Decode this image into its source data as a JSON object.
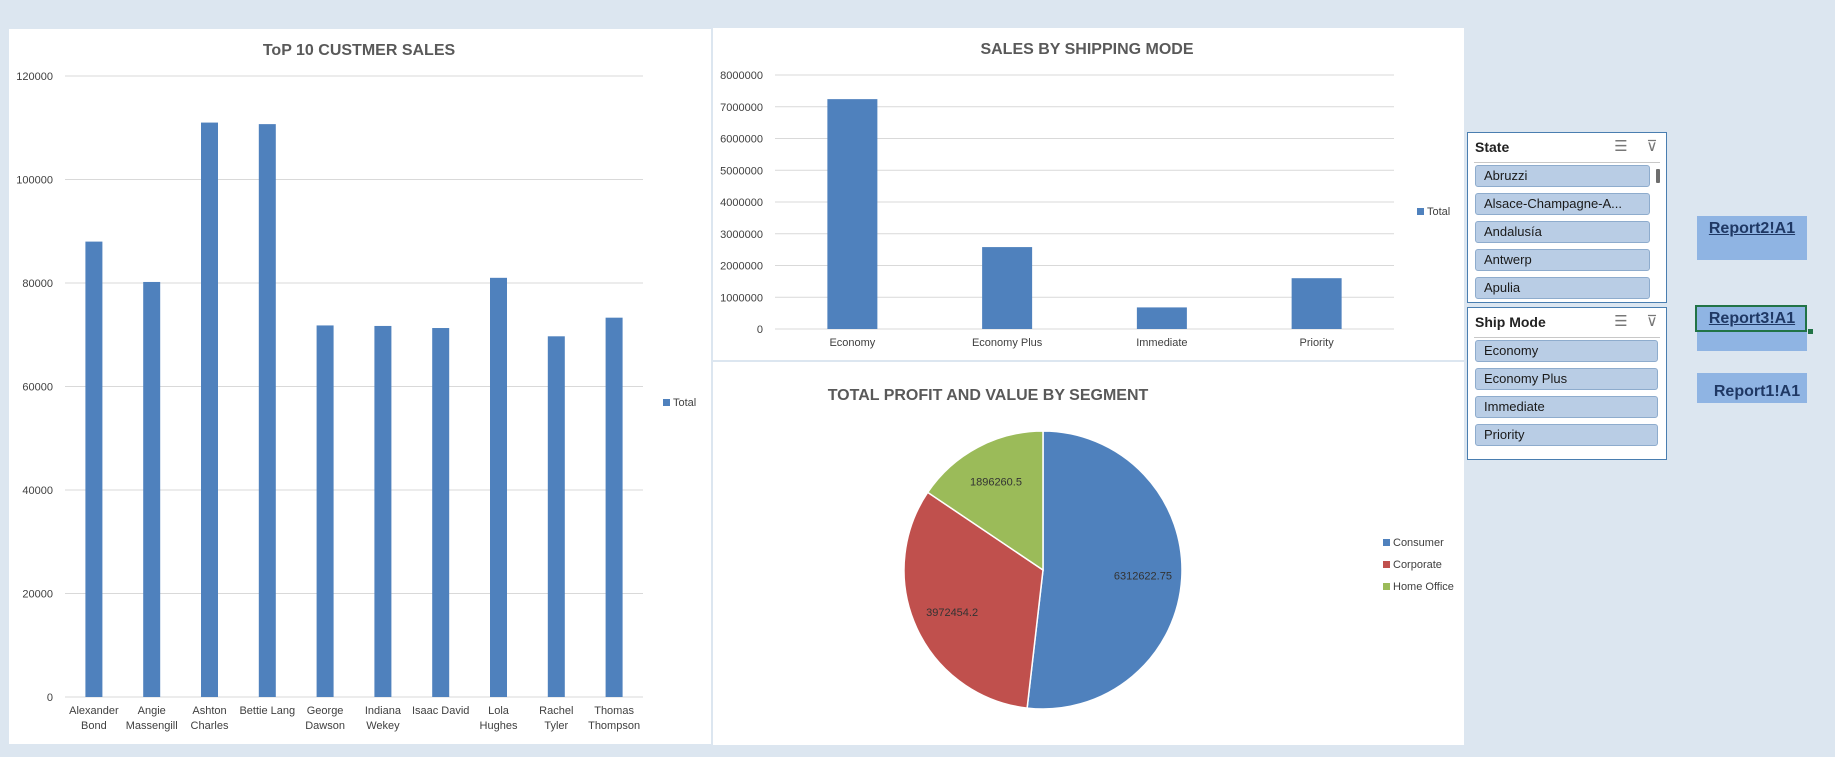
{
  "charts": {
    "customers": {
      "type": "bar",
      "title": "ToP 10 CUSTMER SALES",
      "ylim": [
        0,
        120000
      ],
      "yticks": [
        "0",
        "20000",
        "40000",
        "60000",
        "80000",
        "100000",
        "120000"
      ],
      "categories": [
        [
          "Alexander",
          "Bond"
        ],
        [
          "Angie",
          "Massengill"
        ],
        [
          "Ashton",
          "Charles"
        ],
        [
          "Bettie Lang"
        ],
        [
          "George",
          "Dawson"
        ],
        [
          "Indiana",
          "Wekey"
        ],
        [
          "Isaac David"
        ],
        [
          "Lola",
          "Hughes"
        ],
        [
          "Rachel",
          "Tyler"
        ],
        [
          "Thomas",
          "Thompson"
        ]
      ],
      "values": [
        88000,
        80200,
        111000,
        110700,
        71800,
        71700,
        71300,
        81000,
        69700,
        73300
      ],
      "legend": "Total",
      "color": "#4f81bd"
    },
    "shipping": {
      "type": "bar",
      "title": "SALES BY SHIPPING MODE",
      "ylim": [
        0,
        8000000
      ],
      "yticks": [
        "0",
        "1000000",
        "2000000",
        "3000000",
        "4000000",
        "5000000",
        "6000000",
        "7000000",
        "8000000"
      ],
      "categories": [
        "Economy",
        "Economy Plus",
        "Immediate",
        "Priority"
      ],
      "values": [
        7240000,
        2580000,
        680000,
        1600000
      ],
      "legend": "Total",
      "color": "#4f81bd"
    },
    "segment": {
      "type": "pie",
      "title": "TOTAL PROFIT AND VALUE BY SEGMENT",
      "slices": [
        {
          "name": "Consumer",
          "value": 6312622.75,
          "label": "6312622.75",
          "color": "#4f81bd"
        },
        {
          "name": "Corporate",
          "value": 3972454.2,
          "label": "3972454.2",
          "color": "#c0504d"
        },
        {
          "name": "Home Office",
          "value": 1896260.5,
          "label": "1896260.5",
          "color": "#9bbb59"
        }
      ]
    }
  },
  "slicers": {
    "state": {
      "title": "State",
      "items": [
        "Abruzzi",
        "Alsace-Champagne-A...",
        "Andalusía",
        "Antwerp",
        "Apulia"
      ]
    },
    "ship_mode": {
      "title": "Ship Mode",
      "items": [
        "Economy",
        "Economy Plus",
        "Immediate",
        "Priority"
      ]
    },
    "icons": {
      "multi_select": "multi-select-icon",
      "clear_filter": "clear-filter-icon"
    }
  },
  "links": {
    "report2": "Report2!A1",
    "report3": "Report3!A1",
    "report1": "Report1!A1"
  }
}
